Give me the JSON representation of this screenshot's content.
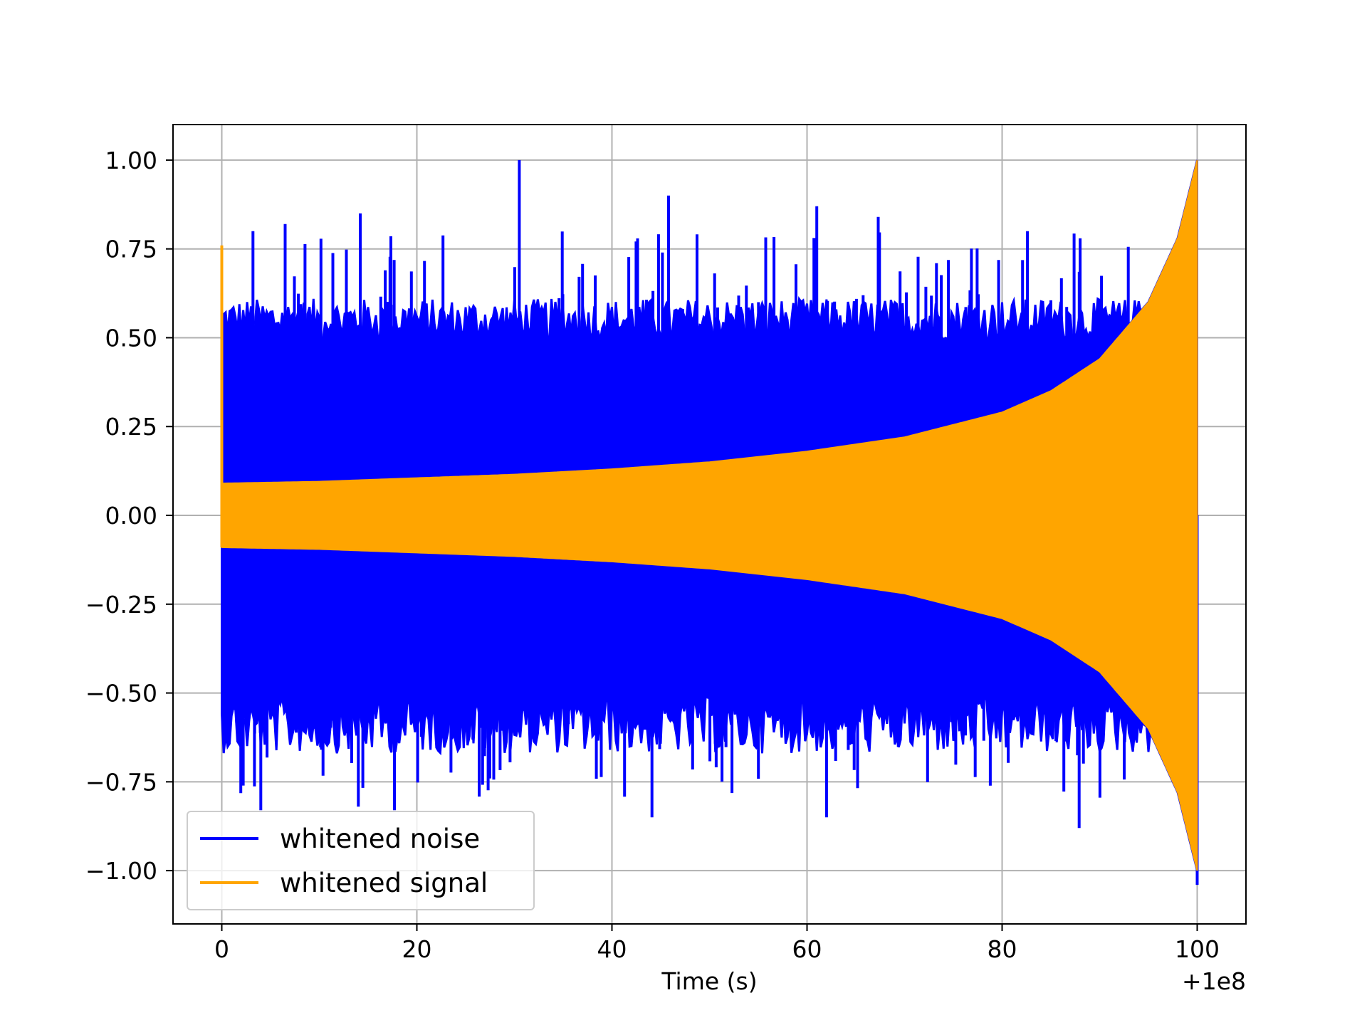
{
  "chart_data": {
    "type": "line",
    "title": "",
    "xlabel": "Time (s)",
    "ylabel": "",
    "x_offset_label": "+1e8",
    "xlim": [
      -5,
      105
    ],
    "ylim": [
      -1.15,
      1.1
    ],
    "xticks": [
      0,
      20,
      40,
      60,
      80,
      100
    ],
    "xtick_labels": [
      "0",
      "20",
      "40",
      "60",
      "80",
      "100"
    ],
    "yticks": [
      1.0,
      0.75,
      0.5,
      0.25,
      0.0,
      -0.25,
      -0.5,
      -0.75,
      -1.0
    ],
    "ytick_labels": [
      "1.00",
      "0.75",
      "0.50",
      "0.25",
      "0.00",
      "−0.25",
      "−0.50",
      "−0.75",
      "−1.00"
    ],
    "grid": true,
    "legend_position": "lower-left",
    "series": [
      {
        "name": "whitened noise",
        "color": "#0000ff",
        "x_range": [
          0,
          100
        ],
        "typical_envelope": 0.55,
        "min": -1.04,
        "max": 1.0,
        "notable_peaks": [
          {
            "x": 30.5,
            "y": 1.0
          },
          {
            "x": 45.8,
            "y": 0.9
          },
          {
            "x": 14.2,
            "y": 0.85
          },
          {
            "x": 61.0,
            "y": 0.87
          },
          {
            "x": 67.3,
            "y": 0.84
          },
          {
            "x": 6.5,
            "y": 0.82
          },
          {
            "x": 3.2,
            "y": 0.8
          },
          {
            "x": 88.0,
            "y": 0.78
          },
          {
            "x": 82.6,
            "y": 0.8
          },
          {
            "x": 44.1,
            "y": -0.85
          },
          {
            "x": 87.9,
            "y": -0.88
          },
          {
            "x": 4.0,
            "y": -0.83
          },
          {
            "x": 14.0,
            "y": -0.82
          },
          {
            "x": 17.7,
            "y": -0.83
          },
          {
            "x": 62.0,
            "y": -0.85
          },
          {
            "x": 100.0,
            "y": -1.04
          }
        ]
      },
      {
        "name": "whitened signal",
        "color": "#ffa500",
        "x_range": [
          0,
          100
        ],
        "envelope": [
          {
            "x": 0,
            "y": 0.09
          },
          {
            "x": 10,
            "y": 0.095
          },
          {
            "x": 20,
            "y": 0.105
          },
          {
            "x": 30,
            "y": 0.115
          },
          {
            "x": 40,
            "y": 0.13
          },
          {
            "x": 50,
            "y": 0.15
          },
          {
            "x": 60,
            "y": 0.18
          },
          {
            "x": 70,
            "y": 0.22
          },
          {
            "x": 80,
            "y": 0.29
          },
          {
            "x": 85,
            "y": 0.35
          },
          {
            "x": 90,
            "y": 0.44
          },
          {
            "x": 95,
            "y": 0.6
          },
          {
            "x": 98,
            "y": 0.78
          },
          {
            "x": 100,
            "y": 1.0
          }
        ],
        "start_spike": 0.76
      }
    ]
  }
}
